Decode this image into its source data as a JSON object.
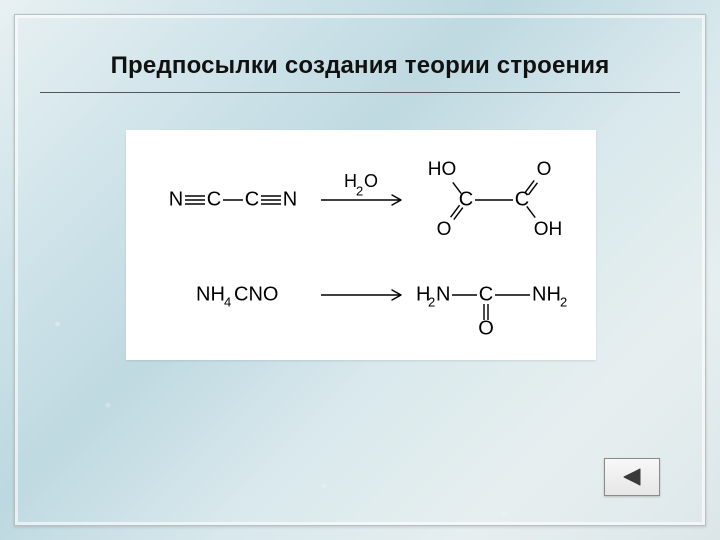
{
  "title": "Предпосылки создания теории строения",
  "colors": {
    "bg_gradient_stops": [
      "#e8f0f2",
      "#d0e4ea",
      "#bcd8e0",
      "#d8e8ec",
      "#e6eef0",
      "#dce6e8"
    ],
    "frame_border": "#b8c0c2",
    "title_color": "#111111",
    "rule_color": "#555555",
    "panel_bg": "#ffffff",
    "chem_stroke": "#000000",
    "chem_text": "#000000",
    "nav_border": "#8a8a8a",
    "nav_fill_top": "#f8f8f8",
    "nav_fill_bottom": "#e6e6e6",
    "nav_arrow": "#3a3a3a"
  },
  "chem": {
    "font_family": "Arial, Helvetica, sans-serif",
    "label_fontsize": 20,
    "sub_fontsize": 13,
    "line_width": 1.4,
    "double_bond_gap": 4,
    "reaction1": {
      "reagent_label": "H",
      "reagent_sub": "2",
      "reagent_tail": "O",
      "left_atoms": [
        "N",
        "C",
        "C",
        "N"
      ],
      "left_bonds": [
        "triple",
        "single",
        "triple"
      ],
      "product_top_labels": [
        "HO",
        "O"
      ],
      "product_center_atoms": [
        "C",
        "C"
      ],
      "product_bottom_labels": [
        "O",
        "OH"
      ]
    },
    "reaction2": {
      "left_formula": {
        "parts": [
          "NH",
          "4",
          "CNO"
        ],
        "sub_index": 1
      },
      "product": {
        "left_group": {
          "parts": [
            "H",
            "2",
            "N"
          ],
          "sub_index": 1
        },
        "center": "C",
        "right_group": {
          "parts": [
            "NH",
            "2"
          ],
          "sub_index": 1
        },
        "bottom": "O"
      }
    }
  },
  "nav": {
    "icon": "triangle-left"
  }
}
